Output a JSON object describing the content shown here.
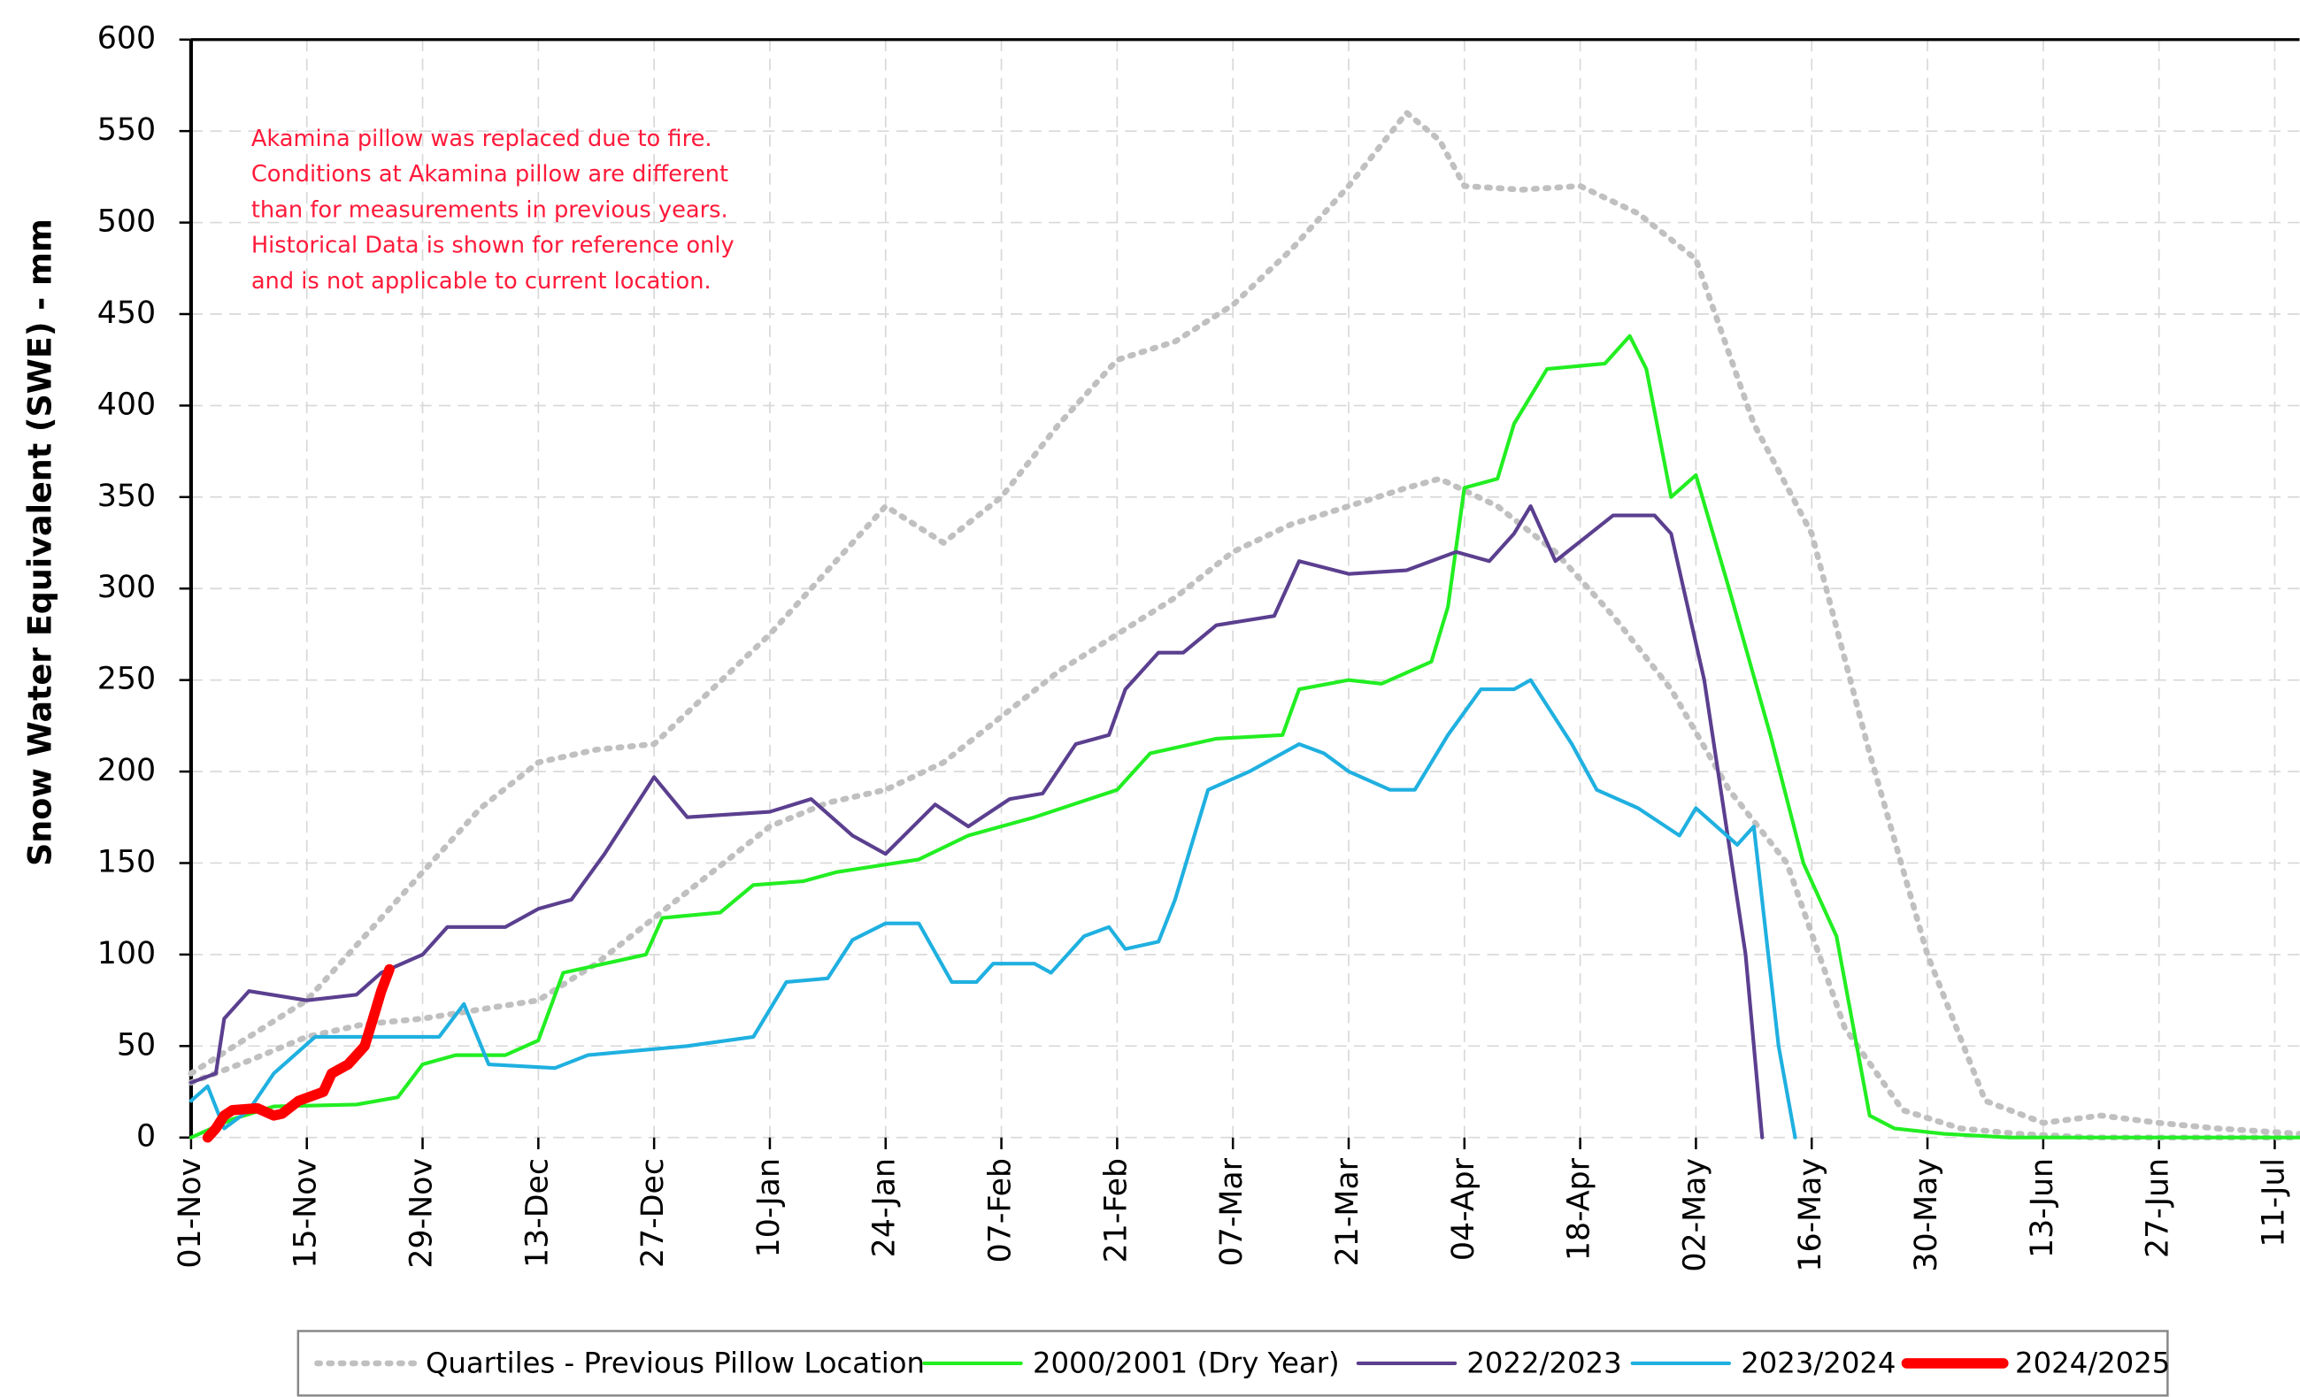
{
  "chart_data": {
    "type": "line",
    "ylabel": "Snow Water Equivalent (SWE)  -  mm",
    "annotation": [
      "Akamina pillow was replaced due to fire.",
      "Conditions at Akamina pillow are different",
      "than for measurements in previous years.",
      "Historical Data is shown for reference only",
      "and is not applicable to current location."
    ],
    "ylim": [
      0,
      600
    ],
    "yticks": [
      0,
      50,
      100,
      150,
      200,
      250,
      300,
      350,
      400,
      450,
      500,
      550,
      600
    ],
    "xlim": [
      0,
      255
    ],
    "xticks": [
      {
        "value": 0,
        "label": "01-Nov"
      },
      {
        "value": 14,
        "label": "15-Nov"
      },
      {
        "value": 28,
        "label": "29-Nov"
      },
      {
        "value": 42,
        "label": "13-Dec"
      },
      {
        "value": 56,
        "label": "27-Dec"
      },
      {
        "value": 70,
        "label": "10-Jan"
      },
      {
        "value": 84,
        "label": "24-Jan"
      },
      {
        "value": 98,
        "label": "07-Feb"
      },
      {
        "value": 112,
        "label": "21-Feb"
      },
      {
        "value": 126,
        "label": "07-Mar"
      },
      {
        "value": 140,
        "label": "21-Mar"
      },
      {
        "value": 154,
        "label": "04-Apr"
      },
      {
        "value": 168,
        "label": "18-Apr"
      },
      {
        "value": 182,
        "label": "02-May"
      },
      {
        "value": 196,
        "label": "16-May"
      },
      {
        "value": 210,
        "label": "30-May"
      },
      {
        "value": 224,
        "label": "13-Jun"
      },
      {
        "value": 238,
        "label": "27-Jun"
      },
      {
        "value": 252,
        "label": "11-Jul"
      }
    ],
    "grid": true,
    "legend": "bottom",
    "series": [
      {
        "name": "Quartiles - Previous Pillow Location",
        "color": "#c0c0c0",
        "style": "dotted",
        "lines": [
          {
            "x": [
              0,
              7,
              14,
              21,
              28,
              35,
              42,
              49,
              56,
              63,
              70,
              77,
              84,
              91,
              98,
              105,
              112,
              119,
              126,
              133,
              140,
              147,
              151,
              154,
              161,
              168,
              175,
              182,
              189,
              196,
              203,
              210,
              217,
              224,
              231,
              238,
              245,
              252,
              255
            ],
            "values": [
              35,
              55,
              75,
              110,
              145,
              180,
              205,
              212,
              215,
              245,
              275,
              310,
              345,
              325,
              350,
              390,
              425,
              435,
              455,
              485,
              520,
              560,
              545,
              520,
              518,
              520,
              505,
              480,
              390,
              330,
              210,
              100,
              20,
              8,
              12,
              8,
              5,
              3,
              2
            ]
          },
          {
            "x": [
              0,
              7,
              14,
              21,
              28,
              35,
              42,
              49,
              56,
              63,
              70,
              77,
              84,
              91,
              98,
              105,
              112,
              119,
              126,
              133,
              140,
              147,
              151,
              158,
              165,
              172,
              179,
              186,
              193,
              200,
              207,
              214,
              221,
              230,
              255
            ],
            "values": [
              30,
              42,
              55,
              62,
              65,
              70,
              75,
              95,
              120,
              145,
              170,
              183,
              190,
              205,
              230,
              255,
              275,
              295,
              320,
              335,
              345,
              355,
              360,
              345,
              320,
              285,
              245,
              190,
              150,
              60,
              15,
              5,
              2,
              0,
              0
            ]
          }
        ]
      },
      {
        "name": "2000/2001  (Dry Year)",
        "color": "#22ee22",
        "style": "solid",
        "lines": [
          {
            "x": [
              0,
              5,
              10,
              20,
              25,
              28,
              32,
              38,
              42,
              45,
              55,
              57,
              64,
              68,
              74,
              78,
              88,
              94,
              102,
              112,
              116,
              124,
              132,
              134,
              140,
              144,
              150,
              152,
              154,
              158,
              160,
              164,
              171,
              174,
              176,
              179,
              182,
              186,
              191,
              195,
              199,
              203,
              206,
              212,
              220,
              255
            ],
            "values": [
              0,
              10,
              17,
              18,
              22,
              40,
              45,
              45,
              53,
              90,
              100,
              120,
              123,
              138,
              140,
              145,
              152,
              165,
              175,
              190,
              210,
              218,
              220,
              245,
              250,
              248,
              260,
              290,
              355,
              360,
              390,
              420,
              423,
              438,
              420,
              350,
              362,
              300,
              220,
              150,
              110,
              12,
              5,
              2,
              0,
              0
            ]
          }
        ]
      },
      {
        "name": "2022/2023",
        "color": "#5b3f8f",
        "style": "solid",
        "lines": [
          {
            "x": [
              0,
              3,
              4,
              7,
              14,
              20,
              23,
              28,
              31,
              38,
              42,
              46,
              50,
              55,
              56,
              60,
              70,
              75,
              80,
              84,
              90,
              94,
              99,
              103,
              107,
              111,
              113,
              117,
              120,
              124,
              131,
              134,
              140,
              147,
              153,
              157,
              160,
              162,
              165,
              172,
              177,
              179,
              183,
              188,
              190
            ],
            "values": [
              30,
              35,
              65,
              80,
              75,
              78,
              90,
              100,
              115,
              115,
              125,
              130,
              155,
              190,
              197,
              175,
              178,
              185,
              165,
              155,
              182,
              170,
              185,
              188,
              215,
              220,
              245,
              265,
              265,
              280,
              285,
              315,
              308,
              310,
              320,
              315,
              330,
              345,
              315,
              340,
              340,
              330,
              250,
              100,
              0
            ]
          }
        ]
      },
      {
        "name": "2023/2024",
        "color": "#1fb0e0",
        "style": "solid",
        "lines": [
          {
            "x": [
              0,
              2,
              4,
              7,
              10,
              15,
              25,
              30,
              33,
              36,
              44,
              48,
              60,
              68,
              72,
              77,
              80,
              84,
              88,
              92,
              95,
              97,
              102,
              104,
              108,
              111,
              113,
              117,
              119,
              123,
              128,
              134,
              137,
              140,
              145,
              148,
              152,
              156,
              160,
              162,
              167,
              170,
              175,
              180,
              182,
              187,
              189,
              192,
              194
            ],
            "values": [
              20,
              28,
              5,
              15,
              35,
              55,
              55,
              55,
              73,
              40,
              38,
              45,
              50,
              55,
              85,
              87,
              108,
              117,
              117,
              85,
              85,
              95,
              95,
              90,
              110,
              115,
              103,
              107,
              130,
              190,
              200,
              215,
              210,
              200,
              190,
              190,
              220,
              245,
              245,
              250,
              215,
              190,
              180,
              165,
              180,
              160,
              170,
              50,
              0
            ]
          }
        ]
      },
      {
        "name": "2024/2025",
        "color": "#ff0000",
        "style": "thick",
        "lines": [
          {
            "x": [
              2,
              3,
              4,
              5,
              8,
              10,
              11,
              13,
              16,
              17,
              19,
              20,
              21,
              22,
              23,
              24
            ],
            "values": [
              0,
              5,
              12,
              15,
              16,
              12,
              13,
              20,
              25,
              35,
              40,
              45,
              50,
              65,
              80,
              92
            ]
          }
        ]
      }
    ]
  }
}
